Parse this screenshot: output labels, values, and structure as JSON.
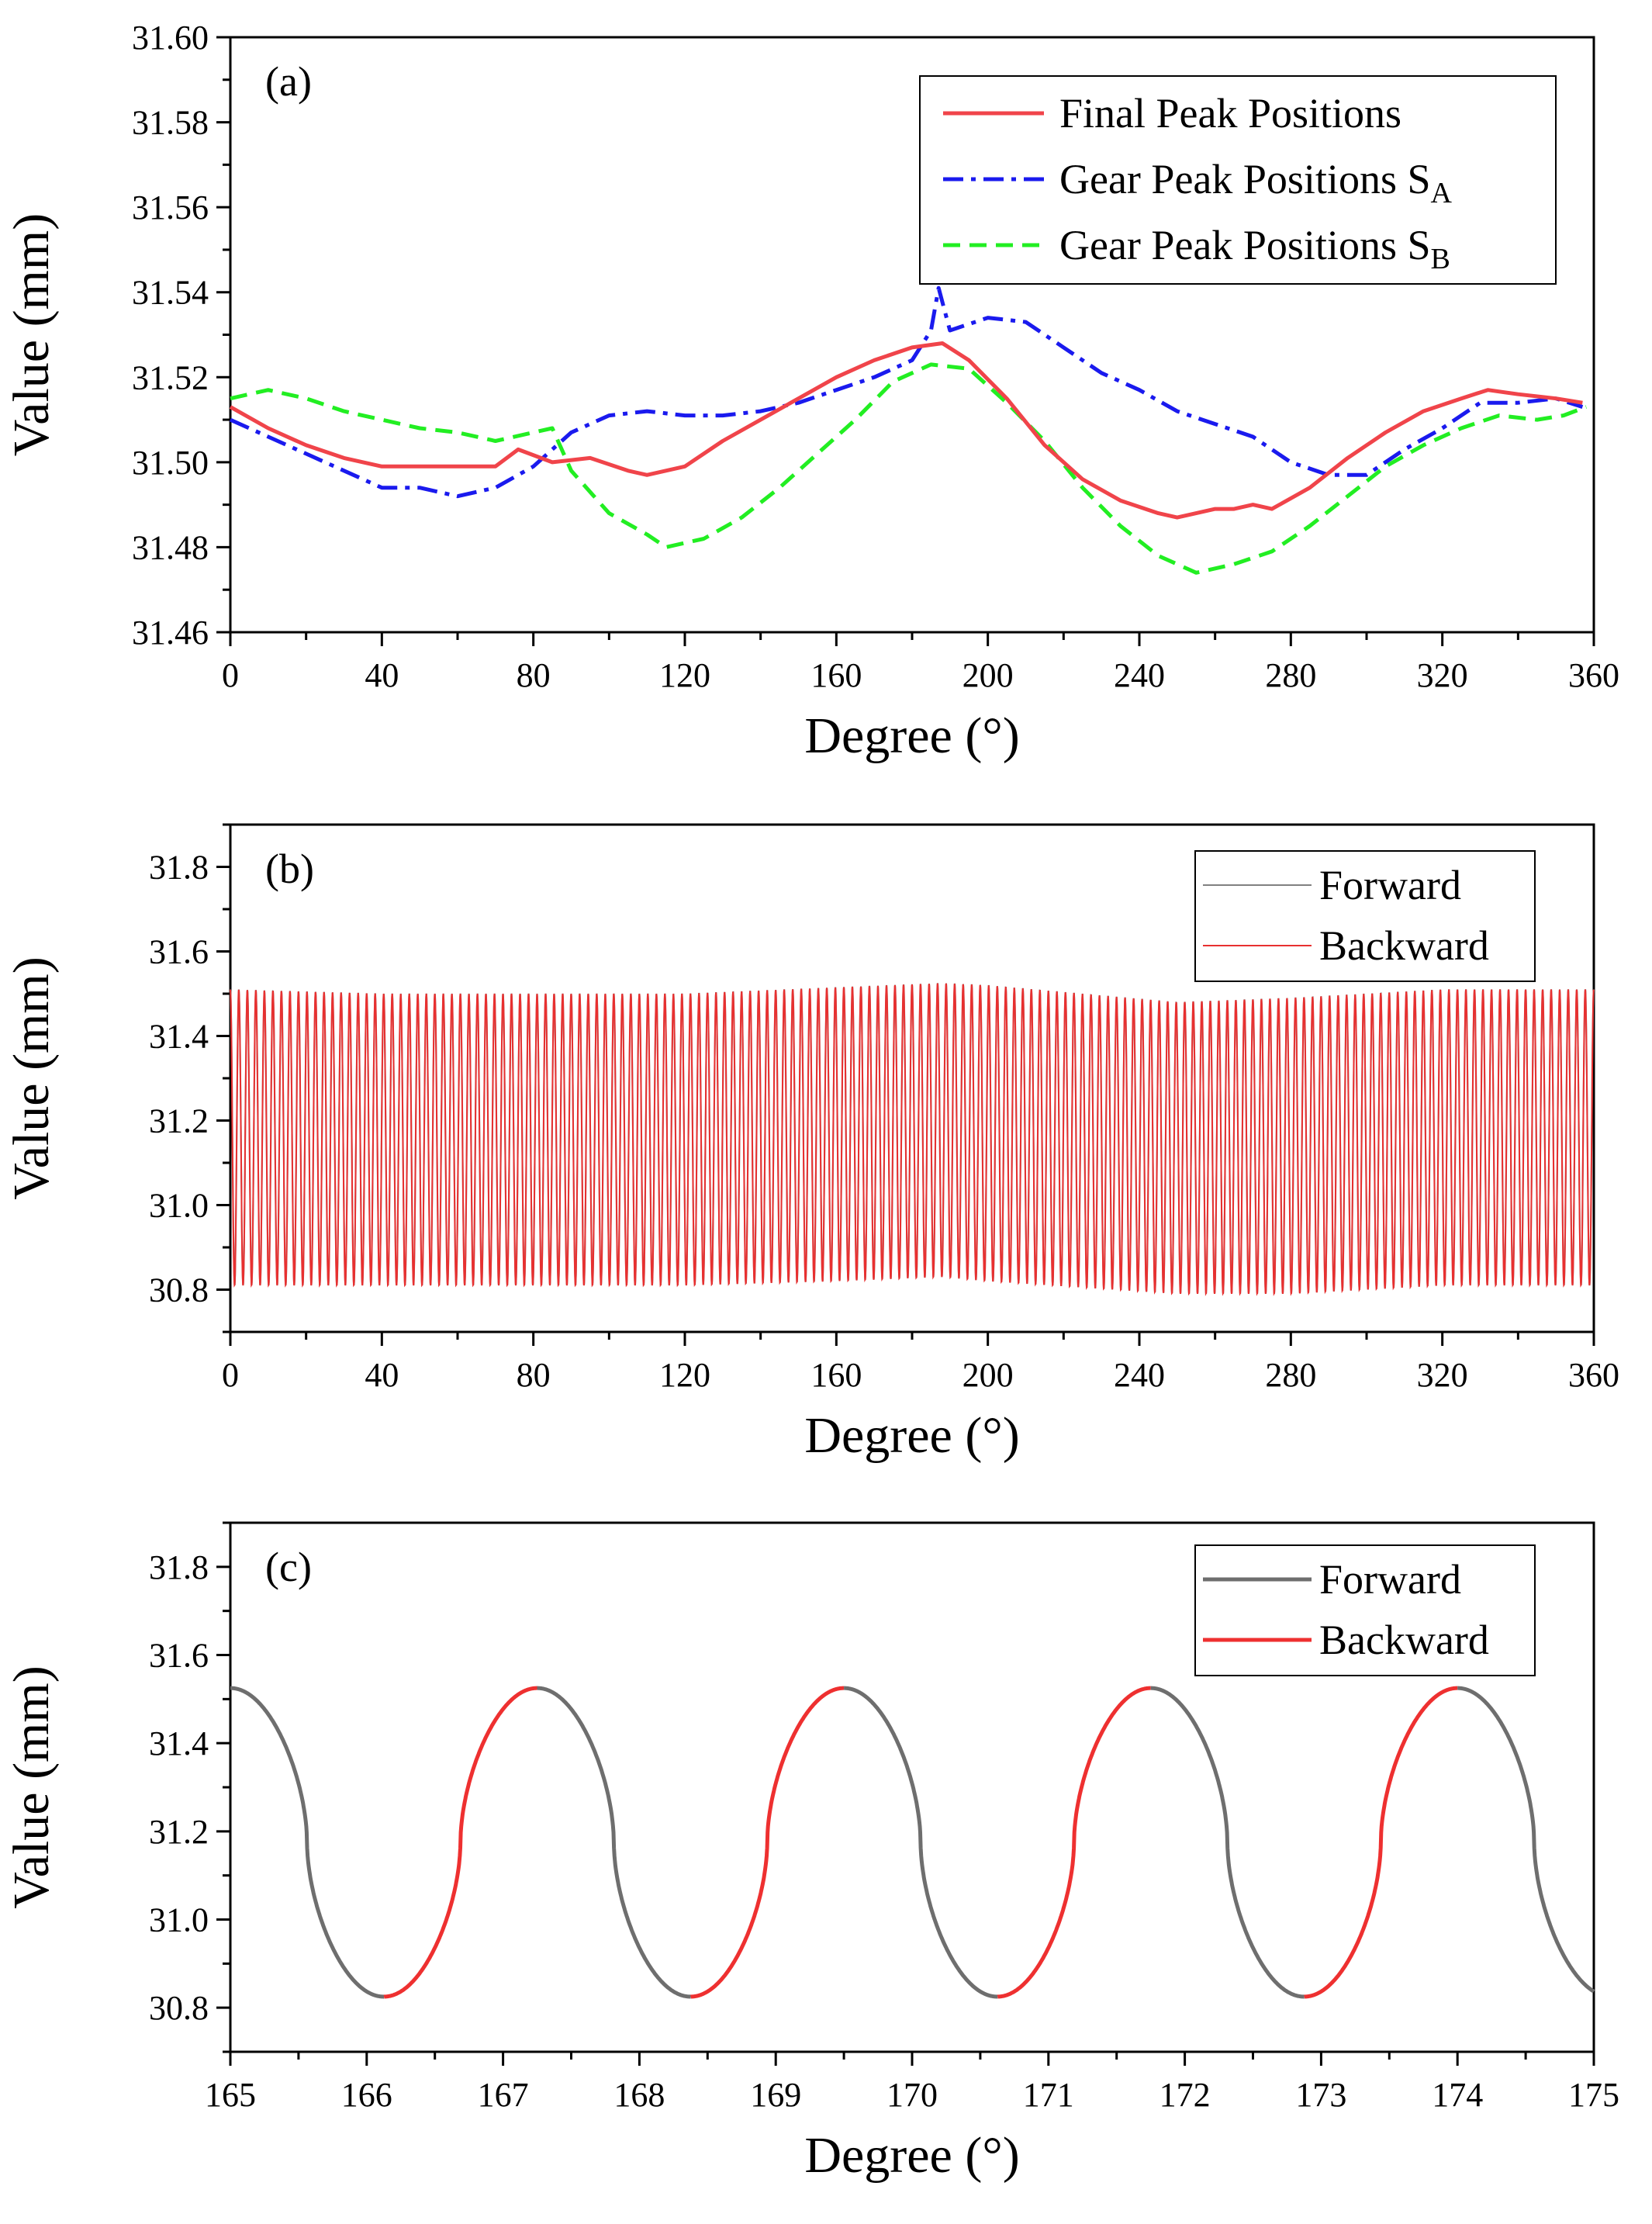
{
  "chart_data": [
    {
      "type": "line",
      "panel_label": "(a)",
      "xlabel": "Degree (°)",
      "ylabel": "Value (mm)",
      "xlim": [
        0,
        360
      ],
      "ylim": [
        31.46,
        31.6
      ],
      "xticks": [
        0,
        40,
        80,
        120,
        160,
        200,
        240,
        280,
        320,
        360
      ],
      "yticks": [
        31.46,
        31.48,
        31.5,
        31.52,
        31.54,
        31.56,
        31.58,
        31.6
      ],
      "legend_position": "top-right",
      "series": [
        {
          "name": "Final Peak Positions",
          "name_sub": "",
          "color": "#f0444a",
          "style": "solid",
          "x": [
            0,
            10,
            20,
            30,
            40,
            50,
            60,
            70,
            76,
            85,
            95,
            105,
            110,
            120,
            130,
            140,
            150,
            160,
            170,
            180,
            188,
            195,
            205,
            215,
            225,
            235,
            245,
            250,
            255,
            260,
            265,
            270,
            275,
            285,
            295,
            305,
            315,
            325,
            332,
            340,
            350,
            357
          ],
          "y": [
            31.513,
            31.508,
            31.504,
            31.501,
            31.499,
            31.499,
            31.499,
            31.499,
            31.503,
            31.5,
            31.501,
            31.498,
            31.497,
            31.499,
            31.505,
            31.51,
            31.515,
            31.52,
            31.524,
            31.527,
            31.528,
            31.524,
            31.515,
            31.504,
            31.496,
            31.491,
            31.488,
            31.487,
            31.488,
            31.489,
            31.489,
            31.49,
            31.489,
            31.494,
            31.501,
            31.507,
            31.512,
            31.515,
            31.517,
            31.516,
            31.515,
            31.514
          ]
        },
        {
          "name": "Gear Peak Positions S",
          "name_sub": "A",
          "color": "#1a1aee",
          "style": "dashdot",
          "x": [
            0,
            10,
            20,
            30,
            40,
            50,
            60,
            70,
            80,
            90,
            100,
            110,
            120,
            130,
            140,
            150,
            160,
            170,
            180,
            185,
            187,
            190,
            200,
            210,
            220,
            230,
            240,
            250,
            260,
            270,
            280,
            290,
            300,
            310,
            320,
            330,
            340,
            350,
            357
          ],
          "y": [
            31.51,
            31.506,
            31.502,
            31.498,
            31.494,
            31.494,
            31.492,
            31.494,
            31.499,
            31.507,
            31.511,
            31.512,
            31.511,
            31.511,
            31.512,
            31.514,
            31.517,
            31.52,
            31.524,
            31.531,
            31.541,
            31.531,
            31.534,
            31.533,
            31.527,
            31.521,
            31.517,
            31.512,
            31.509,
            31.506,
            31.5,
            31.497,
            31.497,
            31.503,
            31.508,
            31.514,
            31.514,
            31.515,
            31.513
          ]
        },
        {
          "name": "Gear Peak Positions S",
          "name_sub": "B",
          "color": "#22ee22",
          "style": "dashed",
          "x": [
            0,
            10,
            20,
            30,
            40,
            50,
            60,
            70,
            80,
            85,
            90,
            100,
            110,
            115,
            125,
            135,
            145,
            155,
            165,
            175,
            185,
            195,
            205,
            215,
            225,
            235,
            245,
            255,
            265,
            275,
            285,
            295,
            305,
            315,
            325,
            335,
            345,
            352,
            358
          ],
          "y": [
            31.515,
            31.517,
            31.515,
            31.512,
            31.51,
            31.508,
            31.507,
            31.505,
            31.507,
            31.508,
            31.498,
            31.488,
            31.483,
            31.48,
            31.482,
            31.487,
            31.494,
            31.502,
            31.51,
            31.519,
            31.523,
            31.522,
            31.514,
            31.505,
            31.494,
            31.485,
            31.478,
            31.474,
            31.476,
            31.479,
            31.485,
            31.492,
            31.499,
            31.504,
            31.508,
            31.511,
            31.51,
            31.511,
            31.513
          ]
        }
      ]
    },
    {
      "type": "line",
      "panel_label": "(b)",
      "xlabel": "Degree (°)",
      "ylabel": "Value (mm)",
      "xlim": [
        0,
        360
      ],
      "ylim": [
        30.7,
        31.9
      ],
      "xticks": [
        0,
        40,
        80,
        120,
        160,
        200,
        240,
        280,
        320,
        360
      ],
      "yticks": [
        30.8,
        31.0,
        31.2,
        31.4,
        31.6,
        31.8
      ],
      "legend_position": "top-right",
      "period_deg": 2.25,
      "series": [
        {
          "name": "Forward",
          "color": "#808080",
          "style": "solid"
        },
        {
          "name": "Backward",
          "color": "#e83030",
          "style": "solid"
        }
      ],
      "envelope": {
        "x": [
          0,
          40,
          80,
          120,
          160,
          188,
          200,
          250,
          280,
          320,
          360
        ],
        "upper": [
          31.51,
          31.5,
          31.5,
          31.5,
          31.515,
          31.525,
          31.52,
          31.48,
          31.49,
          31.51,
          31.51
        ],
        "lower": [
          30.81,
          30.81,
          30.81,
          30.81,
          30.82,
          30.83,
          30.82,
          30.79,
          30.79,
          30.81,
          30.81
        ]
      }
    },
    {
      "type": "line",
      "panel_label": "(c)",
      "xlabel": "Degree (°)",
      "ylabel": "Value (mm)",
      "xlim": [
        165,
        175
      ],
      "ylim": [
        30.7,
        31.9
      ],
      "xticks": [
        165,
        166,
        167,
        168,
        169,
        170,
        171,
        172,
        173,
        174,
        175
      ],
      "yticks": [
        30.8,
        31.0,
        31.2,
        31.4,
        31.6,
        31.8
      ],
      "legend_position": "top-right",
      "period_deg": 2.25,
      "max_value": 31.525,
      "min_value": 30.825,
      "first_max_deg": 165.0,
      "first_min_deg": 166.1,
      "series": [
        {
          "name": "Forward",
          "color": "#6e6e6e",
          "style": "solid"
        },
        {
          "name": "Backward",
          "color": "#ee3030",
          "style": "solid"
        }
      ]
    }
  ]
}
